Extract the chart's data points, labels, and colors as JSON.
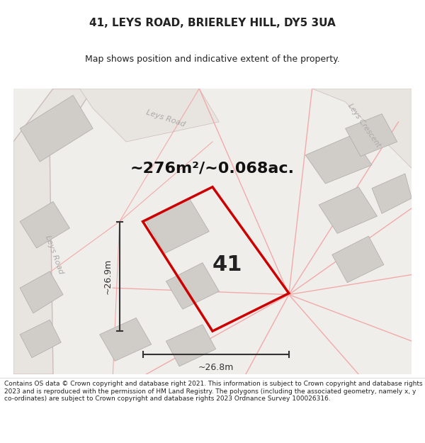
{
  "title_line1": "41, LEYS ROAD, BRIERLEY HILL, DY5 3UA",
  "title_line2": "Map shows position and indicative extent of the property.",
  "area_text": "~276m²/~0.068ac.",
  "label_41": "41",
  "dim_width": "~26.8m",
  "dim_height": "~26.9m",
  "footer_text": "Contains OS data © Crown copyright and database right 2021. This information is subject to Crown copyright and database rights 2023 and is reproduced with the permission of HM Land Registry. The polygons (including the associated geometry, namely x, y co-ordinates) are subject to Crown copyright and database rights 2023 Ordnance Survey 100026316.",
  "bg_color": "#f5f5f0",
  "map_bg": "#f0eeea",
  "road_color": "#e8d8d8",
  "property_color": "#cc0000",
  "building_color": "#d0cdc8",
  "road_label_color": "#aaaaaa",
  "title_color": "#222222",
  "footer_color": "#222222",
  "dim_color": "#333333"
}
